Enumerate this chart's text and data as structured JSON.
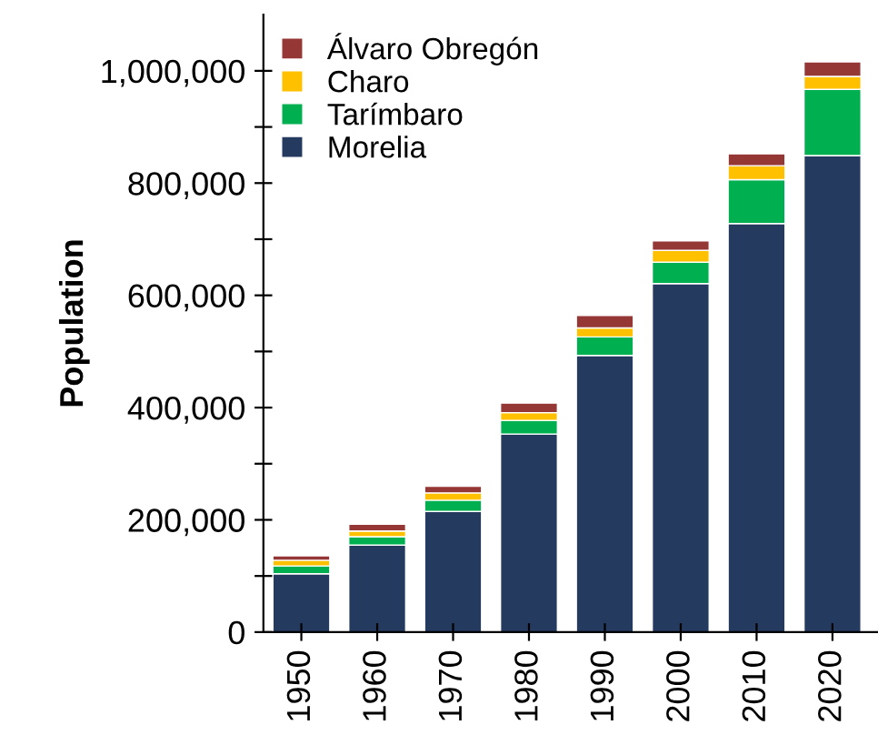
{
  "chart_data": {
    "type": "bar",
    "stacked": true,
    "ylabel": "Population",
    "categories": [
      "1950",
      "1960",
      "1970",
      "1980",
      "1990",
      "2000",
      "2010",
      "2020"
    ],
    "series": [
      {
        "name": "Morelia",
        "color": "#243a5e",
        "values": [
          104000,
          155000,
          215000,
          353000,
          493000,
          621000,
          728000,
          849000
        ]
      },
      {
        "name": "Tarímbaro",
        "color": "#00b050",
        "values": [
          14000,
          15000,
          20000,
          24000,
          33000,
          38000,
          78000,
          118000
        ]
      },
      {
        "name": "Charo",
        "color": "#ffc000",
        "values": [
          10000,
          10000,
          13000,
          14000,
          16000,
          21000,
          25000,
          23000
        ]
      },
      {
        "name": "Álvaro Obregón",
        "color": "#953735",
        "values": [
          8000,
          12000,
          12000,
          17000,
          22000,
          17000,
          21000,
          26000
        ]
      }
    ],
    "ylim": [
      0,
      1100000
    ],
    "yticks": [
      0,
      {
        "value": 100000,
        "label": null
      },
      {
        "value": 200000,
        "label": "200,000"
      },
      {
        "value": 300000,
        "label": null
      },
      {
        "value": 400000,
        "label": "400,000"
      },
      {
        "value": 500000,
        "label": null
      },
      {
        "value": 600000,
        "label": "600,000"
      },
      {
        "value": 700000,
        "label": null
      },
      {
        "value": 800000,
        "label": "800,000"
      },
      {
        "value": 900000,
        "label": null
      },
      {
        "value": 1000000,
        "label": "1,000,000"
      }
    ],
    "legend": "top left",
    "grid": false
  }
}
